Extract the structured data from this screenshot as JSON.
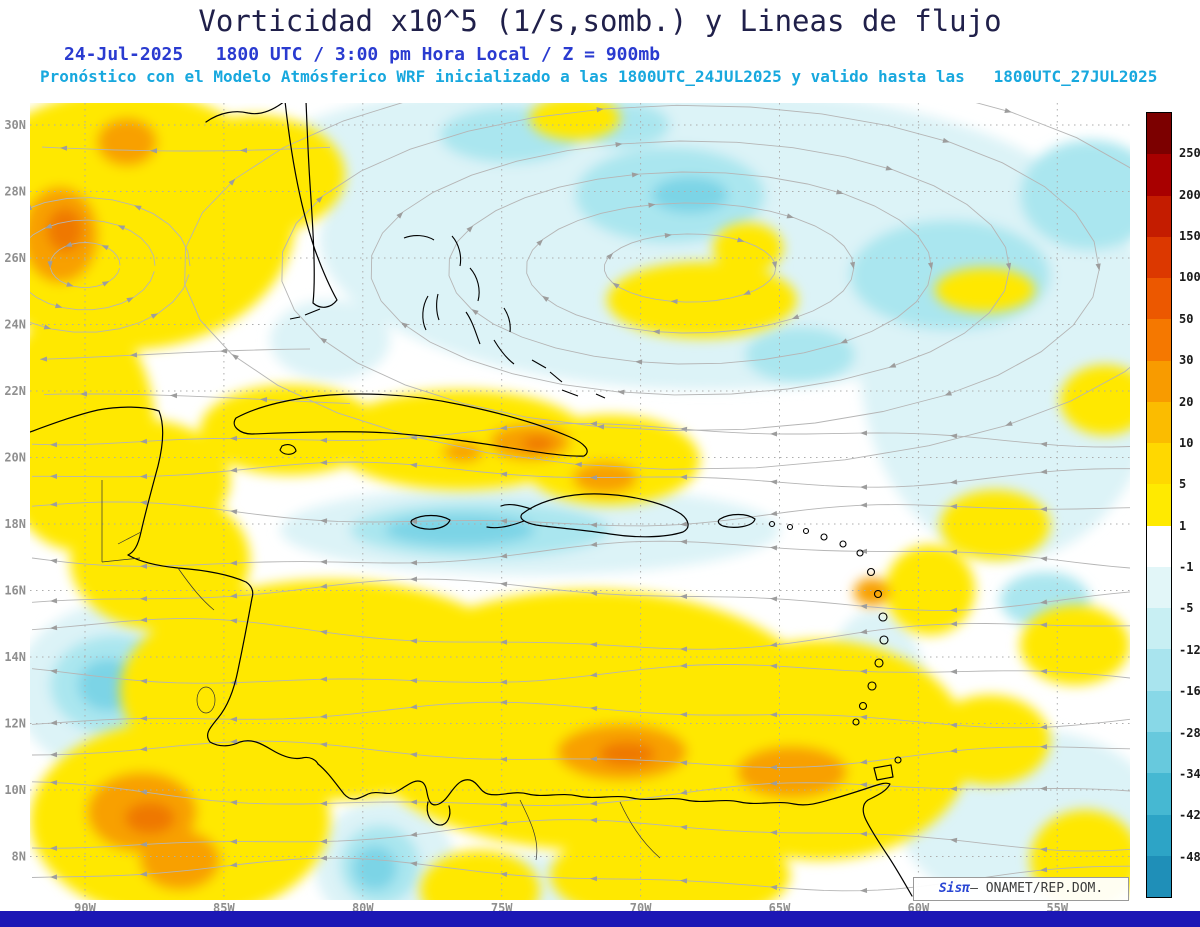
{
  "header": {
    "title": "Vorticidad x10^5 (1/s,somb.) y Lineas de flujo",
    "datetime_line": "24-Jul-2025   1800 UTC / 3:00 pm Hora Local / Z = 900mb",
    "forecast_line": "Pronóstico con el Modelo Atmósferico WRF inicializado a las 1800UTC_24JUL2025 y valido hasta las   1800UTC_27JUL2025"
  },
  "map": {
    "lat_labels": [
      "30N",
      "28N",
      "26N",
      "24N",
      "22N",
      "20N",
      "18N",
      "16N",
      "14N",
      "12N",
      "10N",
      "8N"
    ],
    "lon_labels": [
      "90W",
      "85W",
      "80W",
      "75W",
      "70W",
      "65W",
      "60W",
      "55W"
    ]
  },
  "colorbar": {
    "boundary_labels": [
      "250",
      "200",
      "150",
      "100",
      "50",
      "30",
      "20",
      "10",
      "5",
      "1",
      "-1",
      "-5",
      "-12",
      "-16",
      "-28",
      "-34",
      "-42",
      "-48"
    ],
    "cell_colors": [
      "#7c0000",
      "#a80000",
      "#c41c00",
      "#dc3800",
      "#ec5800",
      "#f57800",
      "#f89b00",
      "#fbbc00",
      "#ffd800",
      "#ffea00",
      "#ffffff",
      "#e2f6f8",
      "#c8eff3",
      "#a9e4ee",
      "#88d8e7",
      "#67c9dd",
      "#46b8d2",
      "#2da4c6",
      "#1f8fb8"
    ]
  },
  "watermark": {
    "brand": "Sisπ",
    "credit": "– ONAMET/REP.DOM."
  },
  "footer": {
    "bar_color": "#1c17b5"
  },
  "chart_data": {
    "type": "heatmap",
    "title": "Vorticidad x10^5 (1/s,somb.) y Lineas de flujo",
    "variable": "Vorticidad x10^5 (1/s, sombreado)",
    "overlay": "Lineas de flujo (streamlines)",
    "level": "Z = 900mb",
    "model": "WRF",
    "init_time": "1800UTC_24JUL2025",
    "valid_until": "1800UTC_27JUL2025",
    "display_time": "24-Jul-2025 1800 UTC / 3:00 pm Hora Local",
    "x_ticks": [
      "90W",
      "85W",
      "80W",
      "75W",
      "70W",
      "65W",
      "60W",
      "55W"
    ],
    "y_ticks": [
      "30N",
      "28N",
      "26N",
      "24N",
      "22N",
      "20N",
      "18N",
      "16N",
      "14N",
      "12N",
      "10N",
      "8N"
    ],
    "colorbar_levels": [
      250,
      200,
      150,
      100,
      50,
      30,
      20,
      10,
      5,
      1,
      -1,
      -5,
      -12,
      -16,
      -28,
      -34,
      -42,
      -48
    ],
    "colorbar_position": "right",
    "grid": "dotted",
    "region": "Caribbean / Gulf of Mexico / Northern South America"
  }
}
